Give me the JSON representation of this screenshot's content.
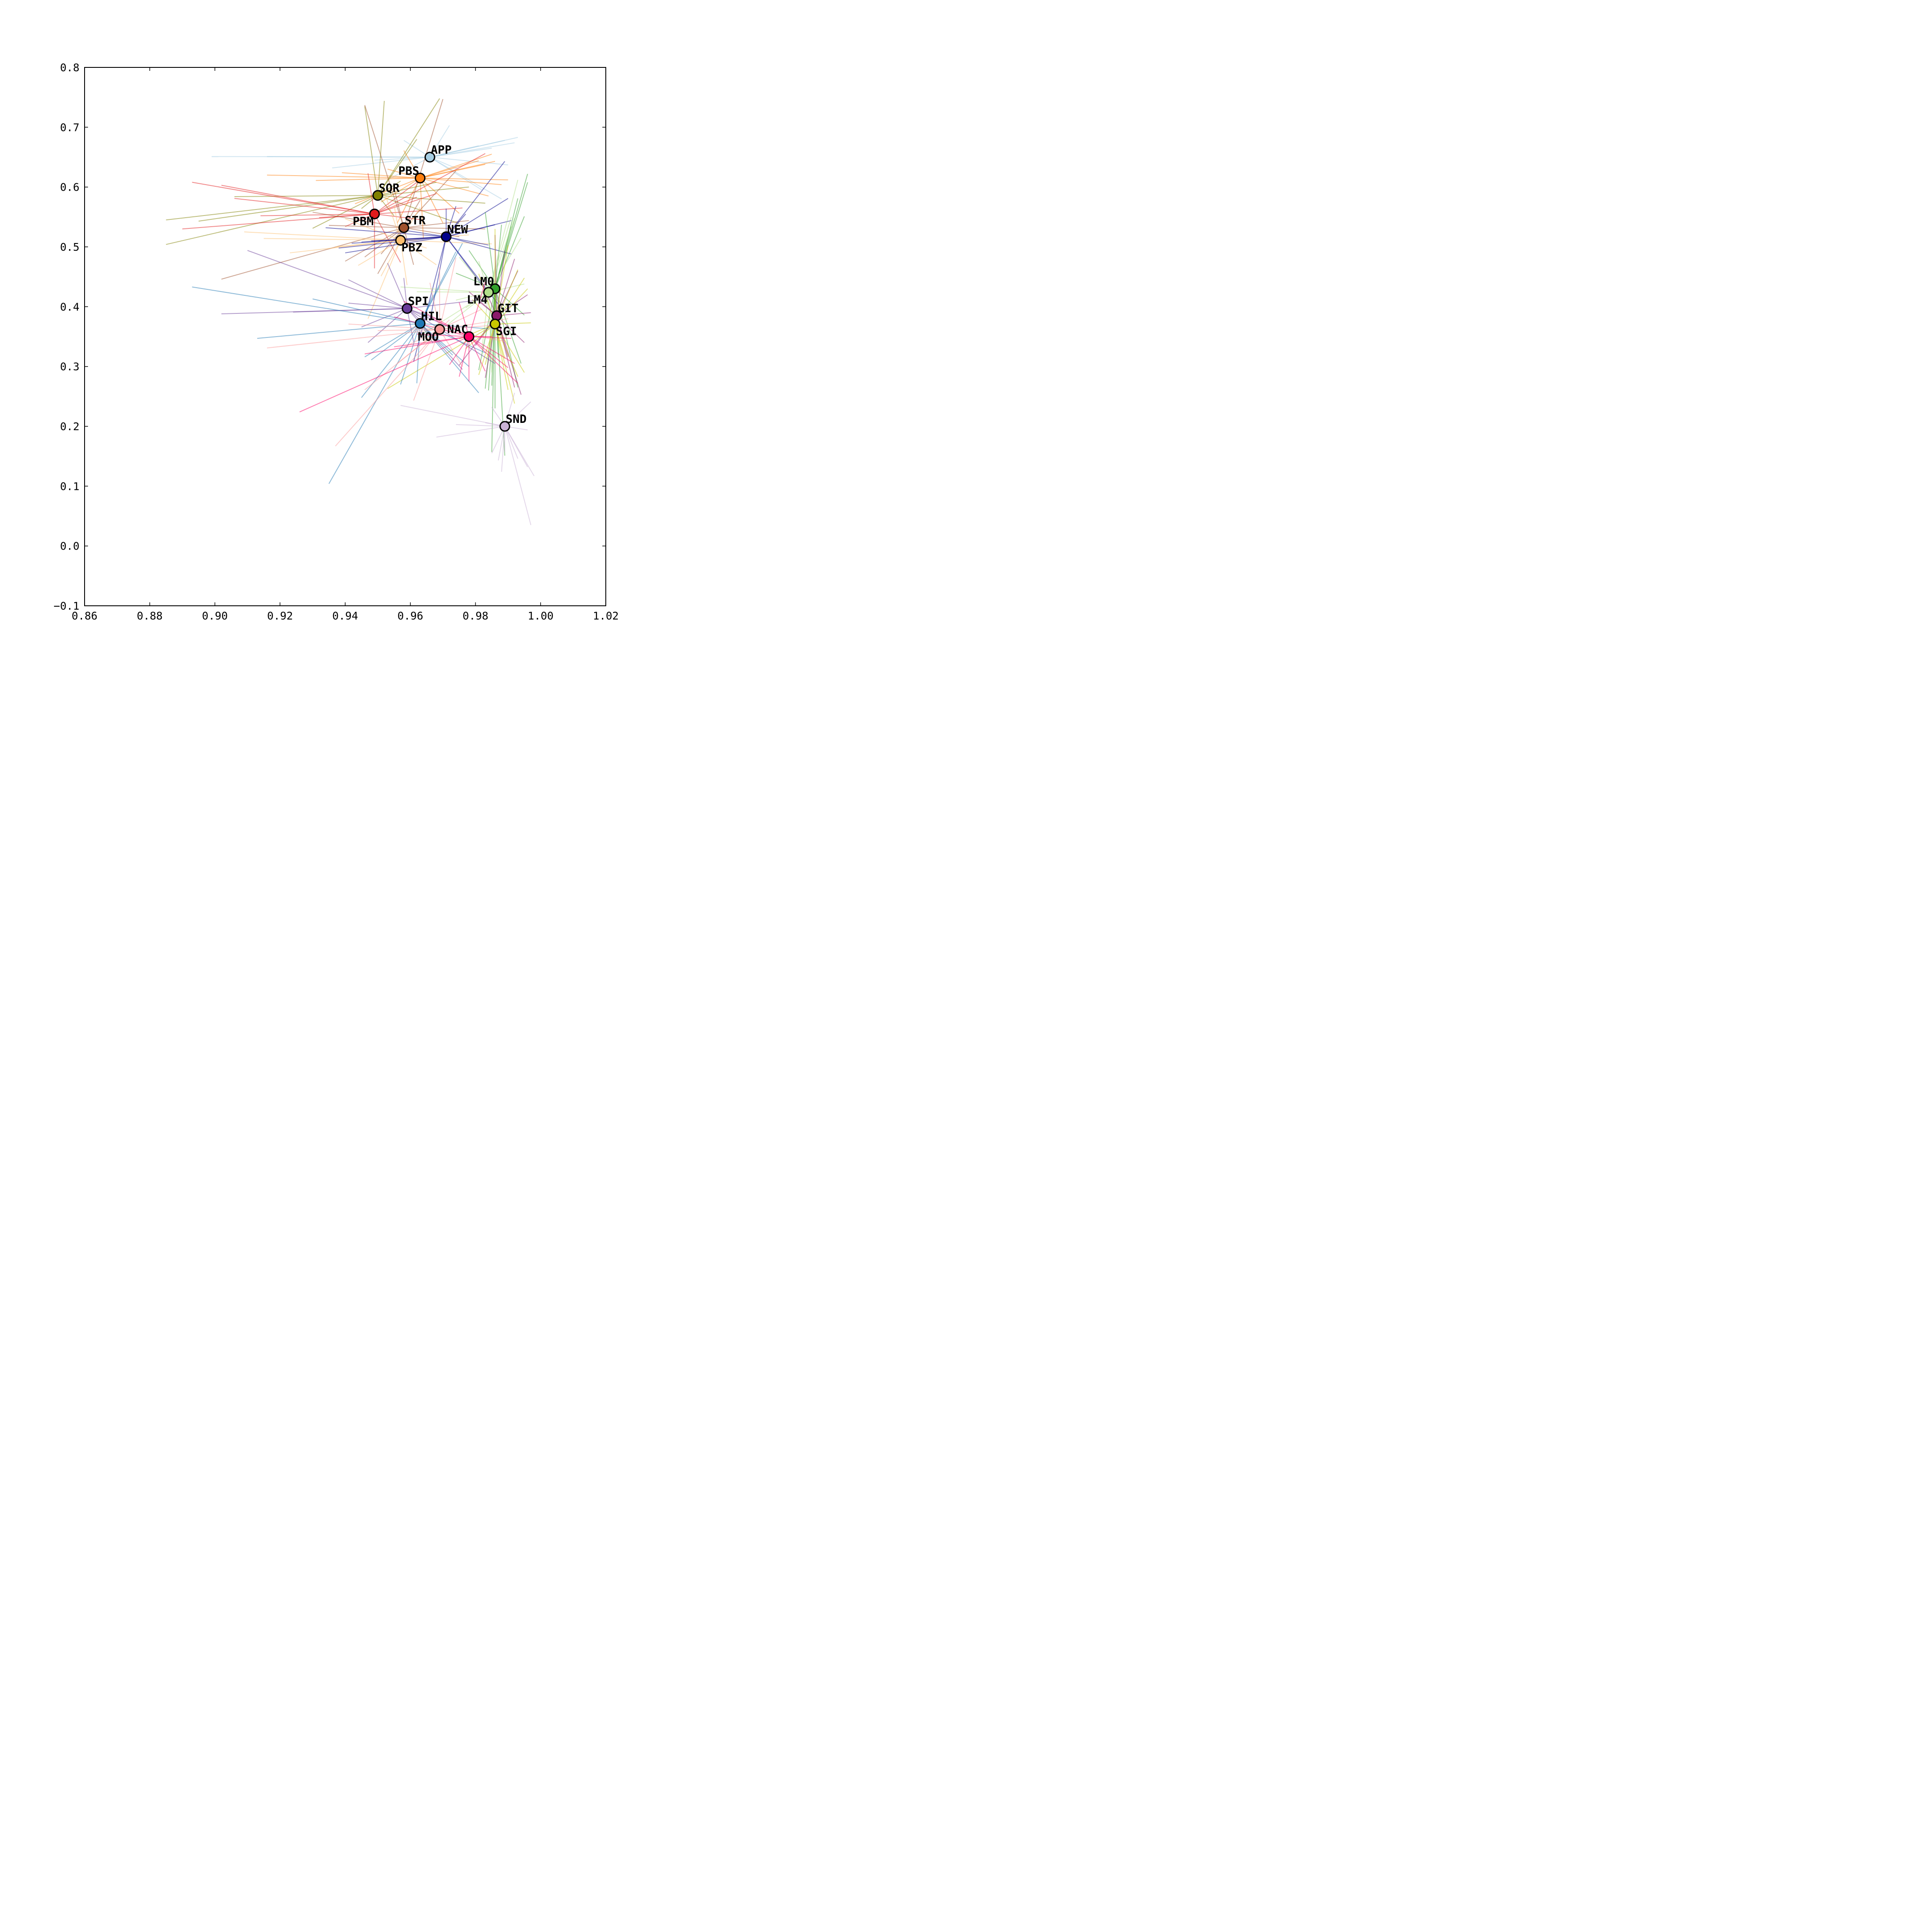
{
  "chart_data": {
    "type": "scatter",
    "title": "",
    "xlabel": "",
    "ylabel": "",
    "xlim": [
      0.86,
      1.02
    ],
    "ylim": [
      -0.1,
      0.8
    ],
    "grid": false,
    "legend": "none",
    "x_ticks": [
      "0.86",
      "0.88",
      "0.90",
      "0.92",
      "0.94",
      "0.96",
      "0.98",
      "1.00",
      "1.02"
    ],
    "y_ticks": [
      "−0.1",
      "0.0",
      "0.1",
      "0.2",
      "0.3",
      "0.4",
      "0.5",
      "0.6",
      "0.7",
      "0.8"
    ],
    "points": [
      {
        "label": "APP",
        "x": 0.966,
        "y": 0.65,
        "color": "#a6cee3",
        "label_pos": "upper-right"
      },
      {
        "label": "PBS",
        "x": 0.963,
        "y": 0.615,
        "color": "#ff7f0e",
        "label_pos": "upper-left"
      },
      {
        "label": "SQR",
        "x": 0.95,
        "y": 0.586,
        "color": "#808000",
        "label_pos": "upper-right"
      },
      {
        "label": "PBM",
        "x": 0.949,
        "y": 0.555,
        "color": "#e31a1c",
        "label_pos": "lower-left"
      },
      {
        "label": "STR",
        "x": 0.958,
        "y": 0.532,
        "color": "#a0522d",
        "label_pos": "upper-right"
      },
      {
        "label": "PBZ",
        "x": 0.957,
        "y": 0.511,
        "color": "#fdbf6f",
        "label_pos": "lower-right"
      },
      {
        "label": "NEW",
        "x": 0.971,
        "y": 0.517,
        "color": "#00008b",
        "label_pos": "upper-right"
      },
      {
        "label": "LM0",
        "x": 0.986,
        "y": 0.43,
        "color": "#33a02c",
        "label_pos": "upper-left"
      },
      {
        "label": "LM4",
        "x": 0.984,
        "y": 0.424,
        "color": "#b2df8a",
        "label_pos": "lower-left"
      },
      {
        "label": "GIT",
        "x": 0.9865,
        "y": 0.385,
        "color": "#8b1a6b",
        "label_pos": "upper-right"
      },
      {
        "label": "SGI",
        "x": 0.986,
        "y": 0.371,
        "color": "#c8c800",
        "label_pos": "lower-right"
      },
      {
        "label": "SPI",
        "x": 0.959,
        "y": 0.397,
        "color": "#6a3d9a",
        "label_pos": "upper-right"
      },
      {
        "label": "HIL",
        "x": 0.963,
        "y": 0.372,
        "color": "#1f78b4",
        "label_pos": "upper-right"
      },
      {
        "label": "MOO",
        "x": 0.969,
        "y": 0.362,
        "color": "#fb9a99",
        "label_pos": "lower-left"
      },
      {
        "label": "NAC",
        "x": 0.978,
        "y": 0.35,
        "color": "#ff0066",
        "label_pos": "upper-left"
      },
      {
        "label": "SND",
        "x": 0.989,
        "y": 0.2,
        "color": "#cab2d6",
        "label_pos": "upper-right"
      }
    ],
    "rays": {
      "APP": [
        [
          0.899,
          0.651
        ],
        [
          0.916,
          0.651
        ],
        [
          0.936,
          0.632
        ],
        [
          0.985,
          0.665
        ],
        [
          0.989,
          0.678
        ],
        [
          0.992,
          0.674
        ],
        [
          0.993,
          0.683
        ],
        [
          0.99,
          0.637
        ],
        [
          0.988,
          0.58
        ],
        [
          0.982,
          0.595
        ],
        [
          0.949,
          0.645
        ],
        [
          0.958,
          0.678
        ],
        [
          0.981,
          0.669
        ],
        [
          0.972,
          0.703
        ],
        [
          0.953,
          0.612
        ],
        [
          0.975,
          0.629
        ]
      ],
      "PBS": [
        [
          0.916,
          0.62
        ],
        [
          0.931,
          0.611
        ],
        [
          0.988,
          0.604
        ],
        [
          0.986,
          0.643
        ],
        [
          0.983,
          0.638
        ],
        [
          0.981,
          0.644
        ],
        [
          0.985,
          0.655
        ],
        [
          0.958,
          0.661
        ],
        [
          0.953,
          0.63
        ],
        [
          0.943,
          0.572
        ],
        [
          0.951,
          0.575
        ],
        [
          0.956,
          0.54
        ],
        [
          0.97,
          0.54
        ],
        [
          0.964,
          0.515
        ],
        [
          0.984,
          0.585
        ],
        [
          0.975,
          0.556
        ],
        [
          0.939,
          0.624
        ],
        [
          0.99,
          0.612
        ]
      ],
      "SQR": [
        [
          0.885,
          0.545
        ],
        [
          0.885,
          0.504
        ],
        [
          0.895,
          0.543
        ],
        [
          0.906,
          0.584
        ],
        [
          0.93,
          0.531
        ],
        [
          0.946,
          0.735
        ],
        [
          0.952,
          0.744
        ],
        [
          0.955,
          0.552
        ],
        [
          0.969,
          0.748
        ],
        [
          0.978,
          0.6
        ],
        [
          0.983,
          0.573
        ],
        [
          0.968,
          0.608
        ],
        [
          0.962,
          0.68
        ],
        [
          0.945,
          0.564
        ],
        [
          0.957,
          0.61
        ],
        [
          0.975,
          0.539
        ]
      ],
      "PBM": [
        [
          0.893,
          0.608
        ],
        [
          0.902,
          0.603
        ],
        [
          0.906,
          0.581
        ],
        [
          0.89,
          0.53
        ],
        [
          0.914,
          0.552
        ],
        [
          0.932,
          0.549
        ],
        [
          0.947,
          0.623
        ],
        [
          0.949,
          0.464
        ],
        [
          0.957,
          0.474
        ],
        [
          0.962,
          0.608
        ],
        [
          0.962,
          0.583
        ],
        [
          0.983,
          0.656
        ],
        [
          0.968,
          0.589
        ],
        [
          0.964,
          0.545
        ],
        [
          0.94,
          0.534
        ],
        [
          0.976,
          0.565
        ]
      ],
      "STR": [
        [
          0.902,
          0.446
        ],
        [
          0.94,
          0.476
        ],
        [
          0.946,
          0.737
        ],
        [
          0.951,
          0.488
        ],
        [
          0.961,
          0.47
        ],
        [
          0.97,
          0.747
        ],
        [
          0.974,
          0.627
        ],
        [
          0.975,
          0.517
        ],
        [
          0.978,
          0.544
        ],
        [
          0.946,
          0.483
        ],
        [
          0.963,
          0.578
        ],
        [
          0.93,
          0.558
        ],
        [
          0.95,
          0.455
        ],
        [
          0.983,
          0.53
        ],
        [
          0.935,
          0.536
        ],
        [
          0.955,
          0.598
        ]
      ],
      "PBZ": [
        [
          0.909,
          0.525
        ],
        [
          0.915,
          0.514
        ],
        [
          0.923,
          0.49
        ],
        [
          0.944,
          0.469
        ],
        [
          0.947,
          0.38
        ],
        [
          0.951,
          0.451
        ],
        [
          0.959,
          0.436
        ],
        [
          0.963,
          0.566
        ],
        [
          0.965,
          0.498
        ],
        [
          0.968,
          0.47
        ],
        [
          0.955,
          0.57
        ],
        [
          0.952,
          0.592
        ],
        [
          0.978,
          0.52
        ],
        [
          0.94,
          0.547
        ],
        [
          0.937,
          0.5
        ],
        [
          0.985,
          0.505
        ]
      ],
      "NEW": [
        [
          0.934,
          0.532
        ],
        [
          0.94,
          0.49
        ],
        [
          0.938,
          0.498
        ],
        [
          0.948,
          0.51
        ],
        [
          0.942,
          0.506
        ],
        [
          0.945,
          0.508
        ],
        [
          0.984,
          0.503
        ],
        [
          0.991,
          0.488
        ],
        [
          0.989,
          0.643
        ],
        [
          0.99,
          0.581
        ],
        [
          0.986,
          0.537
        ],
        [
          0.974,
          0.568
        ],
        [
          0.971,
          0.564
        ],
        [
          0.966,
          0.376
        ],
        [
          0.961,
          0.308
        ],
        [
          0.984,
          0.421
        ],
        [
          0.987,
          0.404
        ],
        [
          0.991,
          0.544
        ],
        [
          0.977,
          0.555
        ],
        [
          0.959,
          0.527
        ]
      ],
      "LM0": [
        [
          0.981,
          0.294
        ],
        [
          0.983,
          0.263
        ],
        [
          0.984,
          0.26
        ],
        [
          0.985,
          0.268
        ],
        [
          0.986,
          0.23
        ],
        [
          0.985,
          0.157
        ],
        [
          0.987,
          0.315
        ],
        [
          0.989,
          0.151
        ],
        [
          0.993,
          0.265
        ],
        [
          0.994,
          0.305
        ],
        [
          0.995,
          0.386
        ],
        [
          0.996,
          0.622
        ],
        [
          0.996,
          0.608
        ],
        [
          0.995,
          0.551
        ],
        [
          0.993,
          0.581
        ],
        [
          0.991,
          0.534
        ],
        [
          0.988,
          0.537
        ],
        [
          0.983,
          0.558
        ],
        [
          0.978,
          0.494
        ],
        [
          0.974,
          0.456
        ]
      ],
      "LM4": [
        [
          0.957,
          0.433
        ],
        [
          0.962,
          0.425
        ],
        [
          0.963,
          0.352
        ],
        [
          0.964,
          0.338
        ],
        [
          0.974,
          0.411
        ],
        [
          0.977,
          0.398
        ],
        [
          0.99,
          0.395
        ],
        [
          0.991,
          0.55
        ],
        [
          0.993,
          0.612
        ],
        [
          0.992,
          0.548
        ],
        [
          0.994,
          0.515
        ],
        [
          0.995,
          0.438
        ],
        [
          0.982,
          0.33
        ],
        [
          0.985,
          0.29
        ],
        [
          0.975,
          0.483
        ],
        [
          0.981,
          0.476
        ]
      ],
      "GIT": [
        [
          0.975,
          0.302
        ],
        [
          0.98,
          0.335
        ],
        [
          0.983,
          0.281
        ],
        [
          0.99,
          0.316
        ],
        [
          0.992,
          0.265
        ],
        [
          0.994,
          0.253
        ],
        [
          0.995,
          0.34
        ],
        [
          0.993,
          0.46
        ],
        [
          0.992,
          0.48
        ],
        [
          0.989,
          0.494
        ],
        [
          0.997,
          0.39
        ],
        [
          0.996,
          0.42
        ],
        [
          0.982,
          0.44
        ],
        [
          0.986,
          0.52
        ],
        [
          0.978,
          0.425
        ],
        [
          0.981,
          0.409
        ]
      ],
      "SGI": [
        [
          0.953,
          0.263
        ],
        [
          0.975,
          0.346
        ],
        [
          0.977,
          0.33
        ],
        [
          0.981,
          0.286
        ],
        [
          0.983,
          0.303
        ],
        [
          0.989,
          0.313
        ],
        [
          0.99,
          0.261
        ],
        [
          0.992,
          0.238
        ],
        [
          0.993,
          0.283
        ],
        [
          0.995,
          0.29
        ],
        [
          0.997,
          0.373
        ],
        [
          0.996,
          0.43
        ],
        [
          0.995,
          0.448
        ],
        [
          0.993,
          0.462
        ],
        [
          0.99,
          0.503
        ],
        [
          0.986,
          0.53
        ],
        [
          0.981,
          0.455
        ],
        [
          0.979,
          0.412
        ]
      ],
      "SPI": [
        [
          0.902,
          0.388
        ],
        [
          0.91,
          0.494
        ],
        [
          0.924,
          0.391
        ],
        [
          0.941,
          0.406
        ],
        [
          0.941,
          0.445
        ],
        [
          0.953,
          0.473
        ],
        [
          0.961,
          0.341
        ],
        [
          0.963,
          0.378
        ],
        [
          0.972,
          0.366
        ],
        [
          0.976,
          0.295
        ],
        [
          0.986,
          0.305
        ],
        [
          0.984,
          0.413
        ],
        [
          0.947,
          0.34
        ],
        [
          0.945,
          0.366
        ],
        [
          0.958,
          0.448
        ],
        [
          0.969,
          0.378
        ]
      ],
      "HIL": [
        [
          0.893,
          0.433
        ],
        [
          0.913,
          0.347
        ],
        [
          0.93,
          0.413
        ],
        [
          0.935,
          0.104
        ],
        [
          0.946,
          0.316
        ],
        [
          0.948,
          0.311
        ],
        [
          0.957,
          0.27
        ],
        [
          0.962,
          0.272
        ],
        [
          0.967,
          0.339
        ],
        [
          0.973,
          0.319
        ],
        [
          0.974,
          0.492
        ],
        [
          0.976,
          0.506
        ],
        [
          0.978,
          0.3
        ],
        [
          0.981,
          0.256
        ],
        [
          0.983,
          0.323
        ],
        [
          0.967,
          0.42
        ],
        [
          0.945,
          0.248
        ],
        [
          0.984,
          0.363
        ]
      ],
      "MOO": [
        [
          0.916,
          0.331
        ],
        [
          0.937,
          0.167
        ],
        [
          0.941,
          0.371
        ],
        [
          0.946,
          0.261
        ],
        [
          0.95,
          0.36
        ],
        [
          0.956,
          0.305
        ],
        [
          0.961,
          0.243
        ],
        [
          0.962,
          0.312
        ],
        [
          0.966,
          0.44
        ],
        [
          0.969,
          0.466
        ],
        [
          0.974,
          0.482
        ],
        [
          0.982,
          0.396
        ],
        [
          0.99,
          0.38
        ],
        [
          0.989,
          0.342
        ],
        [
          0.976,
          0.3
        ],
        [
          0.958,
          0.332
        ],
        [
          0.972,
          0.378
        ],
        [
          0.988,
          0.37
        ]
      ],
      "NAC": [
        [
          0.926,
          0.224
        ],
        [
          0.946,
          0.321
        ],
        [
          0.955,
          0.333
        ],
        [
          0.958,
          0.409
        ],
        [
          0.966,
          0.382
        ],
        [
          0.972,
          0.303
        ],
        [
          0.975,
          0.283
        ],
        [
          0.978,
          0.275
        ],
        [
          0.983,
          0.292
        ],
        [
          0.99,
          0.298
        ],
        [
          0.993,
          0.272
        ],
        [
          0.992,
          0.305
        ],
        [
          0.991,
          0.347
        ],
        [
          0.985,
          0.35
        ],
        [
          0.983,
          0.441
        ],
        [
          0.975,
          0.407
        ],
        [
          0.962,
          0.354
        ],
        [
          0.955,
          0.383
        ]
      ],
      "SND": [
        [
          0.957,
          0.235
        ],
        [
          0.968,
          0.182
        ],
        [
          0.974,
          0.203
        ],
        [
          0.983,
          0.206
        ],
        [
          0.985,
          0.155
        ],
        [
          0.987,
          0.143
        ],
        [
          0.988,
          0.124
        ],
        [
          0.989,
          0.157
        ],
        [
          0.993,
          0.146
        ],
        [
          0.996,
          0.132
        ],
        [
          0.998,
          0.117
        ],
        [
          0.997,
          0.035
        ],
        [
          0.997,
          0.241
        ],
        [
          0.992,
          0.256
        ],
        [
          0.985,
          0.232
        ],
        [
          0.996,
          0.194
        ]
      ]
    }
  }
}
